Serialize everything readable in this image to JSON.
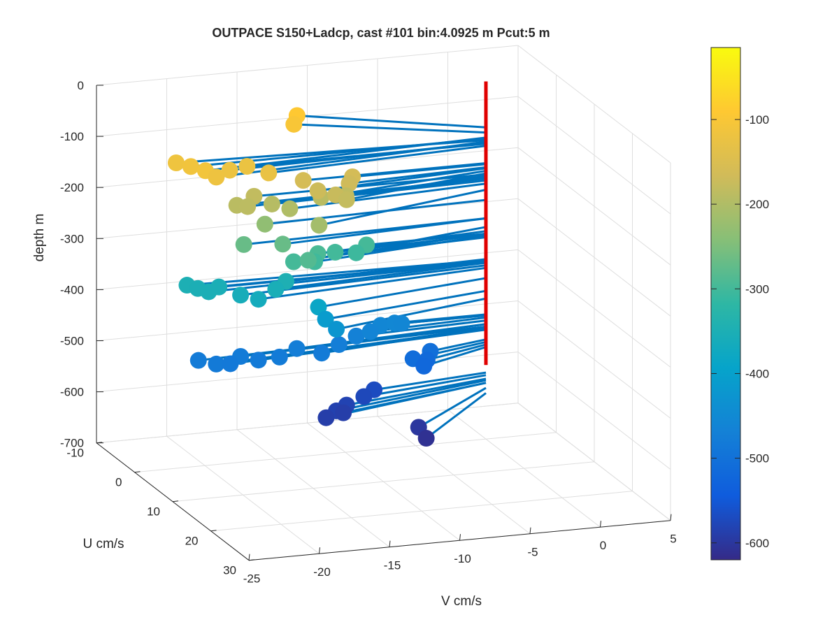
{
  "chart_data": {
    "type": "scatter",
    "title": "OUTPACE S150+Ladcp, cast #101 bin:4.0925 m  Pcut:5 m",
    "xlabel": "V cm/s",
    "ylabel": "U cm/s",
    "zlabel": "depth m",
    "xlim": [
      -25,
      5
    ],
    "ylim": [
      -10,
      30
    ],
    "zlim": [
      -700,
      0
    ],
    "xticks": [
      "-25",
      "-20",
      "-15",
      "-10",
      "-5",
      "0",
      "5"
    ],
    "yticks": [
      "-10",
      "0",
      "10",
      "20",
      "30"
    ],
    "zticks": [
      "0",
      "-100",
      "-200",
      "-300",
      "-400",
      "-500",
      "-600",
      "-700"
    ],
    "grid": true,
    "colorbar": {
      "ticks": [
        "-100",
        "-200",
        "-300",
        "-400",
        "-500",
        "-600"
      ],
      "range": [
        -620,
        -15
      ],
      "colormap": "parula"
    },
    "colors": {
      "stem": "#0072bd",
      "axis": "#e00000",
      "grid": "#dedede"
    },
    "series": [
      {
        "points": [
          {
            "v": -20.5,
            "u": 2,
            "z": -110
          },
          {
            "v": -21,
            "u": 0,
            "z": -112
          },
          {
            "v": -21.5,
            "u": -2,
            "z": -115
          },
          {
            "v": -20,
            "u": 3,
            "z": -118
          },
          {
            "v": -18.5,
            "u": 1,
            "z": -120
          },
          {
            "v": -17,
            "u": 0,
            "z": -122
          },
          {
            "v": -16,
            "u": 2,
            "z": -126
          },
          {
            "v": -11,
            "u": -9,
            "z": -90
          },
          {
            "v": -11.5,
            "u": -8,
            "z": -100
          },
          {
            "v": -13,
            "u": 0,
            "z": -160
          },
          {
            "v": -12.5,
            "u": 2,
            "z": -170
          },
          {
            "v": -11.5,
            "u": 3,
            "z": -175
          },
          {
            "v": -11,
            "u": 4,
            "z": -180
          },
          {
            "v": -10,
            "u": 1,
            "z": -168
          },
          {
            "v": -9.5,
            "u": 0,
            "z": -162
          },
          {
            "v": -10.5,
            "u": 2,
            "z": -185
          },
          {
            "v": -12,
            "u": 1,
            "z": -190
          },
          {
            "v": -17.5,
            "u": 2,
            "z": -188
          },
          {
            "v": -18,
            "u": 1,
            "z": -190
          },
          {
            "v": -16.5,
            "u": 0,
            "z": -182
          },
          {
            "v": -15.5,
            "u": 1,
            "z": -194
          },
          {
            "v": -14.5,
            "u": 2,
            "z": -200
          },
          {
            "v": -13.5,
            "u": 6,
            "z": -212
          },
          {
            "v": -16,
            "u": 1,
            "z": -232
          },
          {
            "v": -17.5,
            "u": 1,
            "z": -268
          },
          {
            "v": -15,
            "u": 2,
            "z": -268
          },
          {
            "v": -14,
            "u": 5,
            "z": -285
          },
          {
            "v": -14.5,
            "u": 3,
            "z": -298
          },
          {
            "v": -13,
            "u": 3,
            "z": -302
          },
          {
            "v": -12.5,
            "u": 2,
            "z": -293
          },
          {
            "v": -11,
            "u": 1,
            "z": -300
          },
          {
            "v": -9.5,
            "u": 1,
            "z": -305
          },
          {
            "v": -8.5,
            "u": 0,
            "z": -298
          },
          {
            "v": -21,
            "u": -1,
            "z": -350
          },
          {
            "v": -20.5,
            "u": 0,
            "z": -352
          },
          {
            "v": -20,
            "u": 1,
            "z": -354
          },
          {
            "v": -19,
            "u": 0,
            "z": -353
          },
          {
            "v": -18,
            "u": 2,
            "z": -360
          },
          {
            "v": -17,
            "u": 3,
            "z": -365
          },
          {
            "v": -15.5,
            "u": 2,
            "z": -355
          },
          {
            "v": -14.5,
            "u": 1,
            "z": -348
          },
          {
            "v": -13,
            "u": 4,
            "z": -385
          },
          {
            "v": -12.5,
            "u": 4,
            "z": -410
          },
          {
            "v": -12,
            "u": 5,
            "z": -425
          },
          {
            "v": -21,
            "u": 2,
            "z": -480
          },
          {
            "v": -20,
            "u": 3,
            "z": -484
          },
          {
            "v": -19,
            "u": 3,
            "z": -486
          },
          {
            "v": -18,
            "u": 2,
            "z": -480
          },
          {
            "v": -17,
            "u": 3,
            "z": -484
          },
          {
            "v": -15.5,
            "u": 3,
            "z": -482
          },
          {
            "v": -14,
            "u": 2,
            "z": -475
          },
          {
            "v": -12.5,
            "u": 3,
            "z": -482
          },
          {
            "v": -11,
            "u": 2,
            "z": -475
          },
          {
            "v": -9.5,
            "u": 1,
            "z": -468
          },
          {
            "v": -8.5,
            "u": 1,
            "z": -462
          },
          {
            "v": -7.5,
            "u": 0,
            "z": -458
          },
          {
            "v": -6.5,
            "u": 0,
            "z": -456
          },
          {
            "v": -6,
            "u": 0,
            "z": -458
          },
          {
            "v": -6,
            "u": 3,
            "z": -510
          },
          {
            "v": -5.5,
            "u": 4,
            "z": -520
          },
          {
            "v": -5,
            "u": 3,
            "z": -515
          },
          {
            "v": -4.5,
            "u": 2,
            "z": -505
          },
          {
            "v": -13,
            "u": 6,
            "z": -590
          },
          {
            "v": -12,
            "u": 5,
            "z": -585
          },
          {
            "v": -11.5,
            "u": 5,
            "z": -590
          },
          {
            "v": -11,
            "u": 4,
            "z": -582
          },
          {
            "v": -9.5,
            "u": 3,
            "z": -575
          },
          {
            "v": -8.5,
            "u": 2,
            "z": -570
          },
          {
            "v": -7.5,
            "u": 10,
            "z": -600
          },
          {
            "v": -7.5,
            "u": 12,
            "z": -610
          }
        ]
      }
    ]
  }
}
